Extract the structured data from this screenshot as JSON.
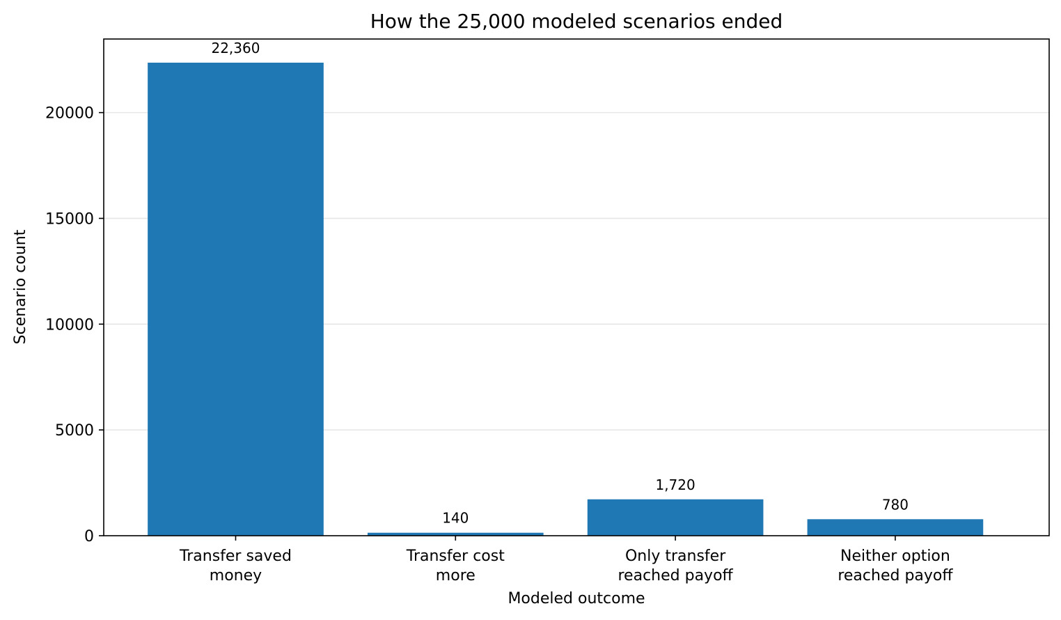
{
  "chart_data": {
    "type": "bar",
    "title": "How the 25,000 modeled scenarios ended",
    "xlabel": "Modeled outcome",
    "ylabel": "Scenario count",
    "categories": [
      [
        "Transfer saved",
        "money"
      ],
      [
        "Transfer cost",
        "more"
      ],
      [
        "Only transfer",
        "reached payoff"
      ],
      [
        "Neither option",
        "reached payoff"
      ]
    ],
    "values": [
      22360,
      140,
      1720,
      780
    ],
    "data_labels": [
      "22,360",
      "140",
      "1,720",
      "780"
    ],
    "yticks": [
      0,
      5000,
      10000,
      15000,
      20000
    ],
    "ylim": [
      0,
      23478
    ],
    "grid": "horizontal",
    "legend": "none",
    "colors": {
      "bar": "#1f77b4",
      "grid": "#e6e6e6",
      "frame": "#000000"
    }
  }
}
